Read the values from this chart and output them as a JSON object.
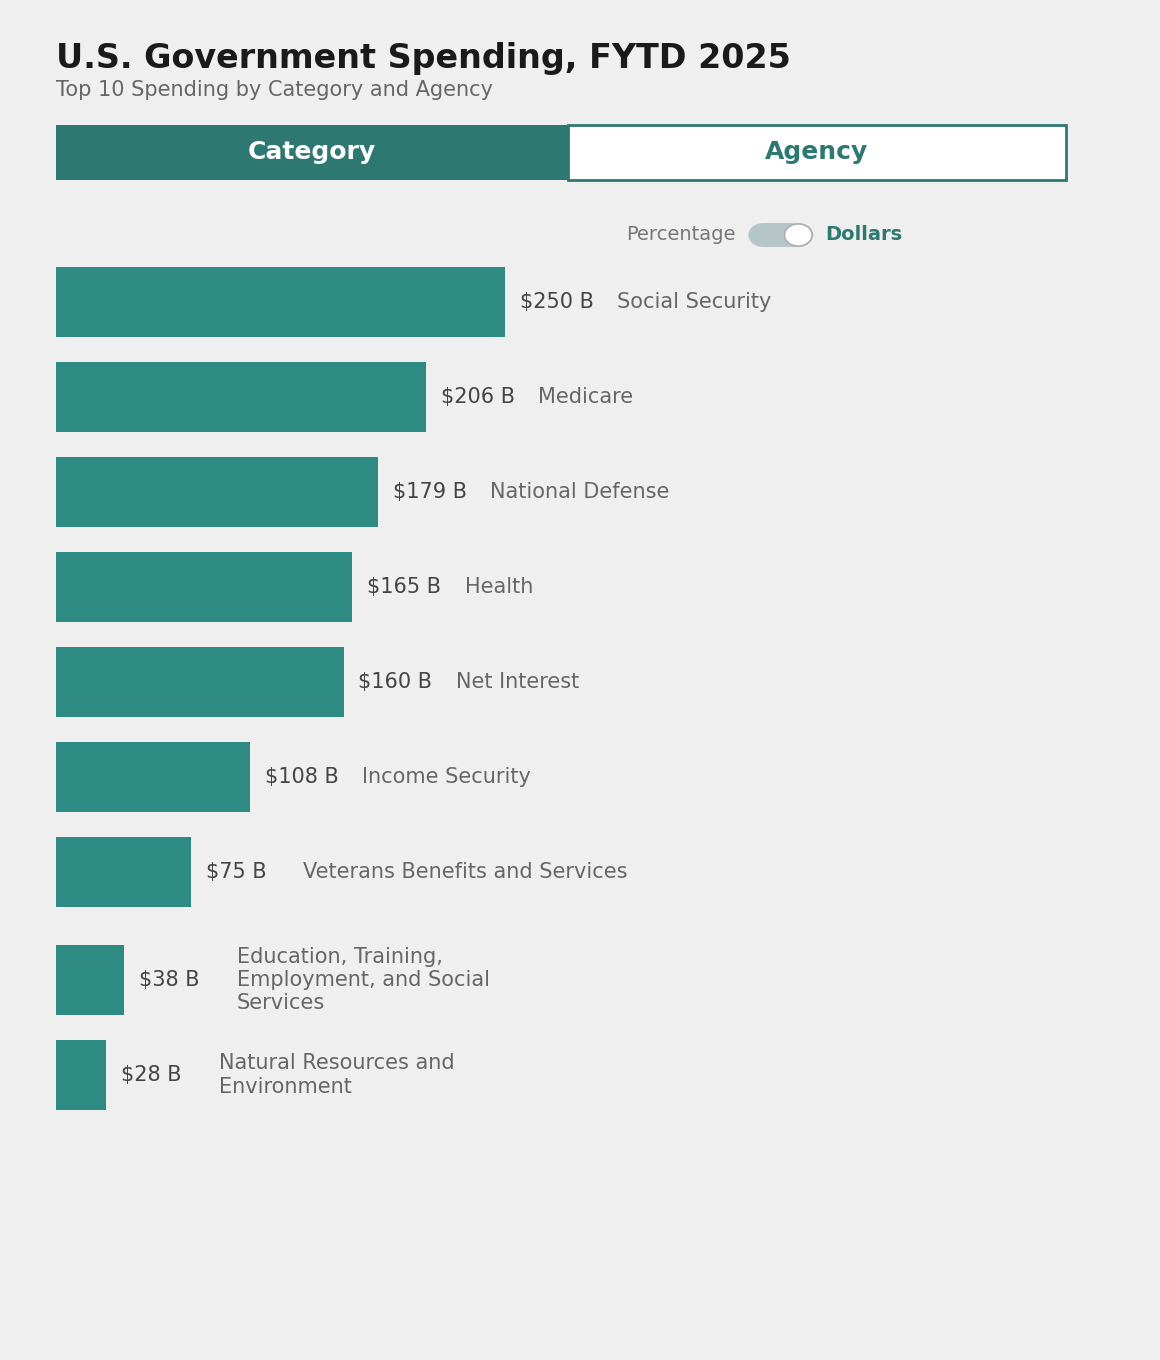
{
  "title": "U.S. Government Spending, FYTD 2025",
  "subtitle": "Top 10 Spending by Category and Agency",
  "background_color": "#efefef",
  "bar_color": "#2e8b84",
  "tab_active_color": "#2e7872",
  "tab_inactive_color": "#ffffff",
  "tab_border_color": "#2e7872",
  "categories": [
    "Social Security",
    "Medicare",
    "National Defense",
    "Health",
    "Net Interest",
    "Income Security",
    "Veterans Benefits and Services",
    "Education, Training,\nEmployment, and Social\nServices",
    "Natural Resources and\nEnvironment"
  ],
  "values": [
    250,
    206,
    179,
    165,
    160,
    108,
    75,
    38,
    28
  ],
  "labels": [
    "$250 B",
    "$206 B",
    "$179 B",
    "$165 B",
    "$160 B",
    "$108 B",
    "$75 B",
    "$38 B",
    "$28 B"
  ],
  "max_value": 250,
  "title_fontsize": 24,
  "subtitle_fontsize": 15,
  "label_fontsize": 15,
  "category_fontsize": 15,
  "toggle_label_percentage": "Percentage",
  "toggle_label_dollars": "Dollars",
  "title_color": "#1a1a1a",
  "subtitle_color": "#666666",
  "bar_label_color": "#444444",
  "category_label_color": "#666666",
  "tab_text_fontsize": 18
}
